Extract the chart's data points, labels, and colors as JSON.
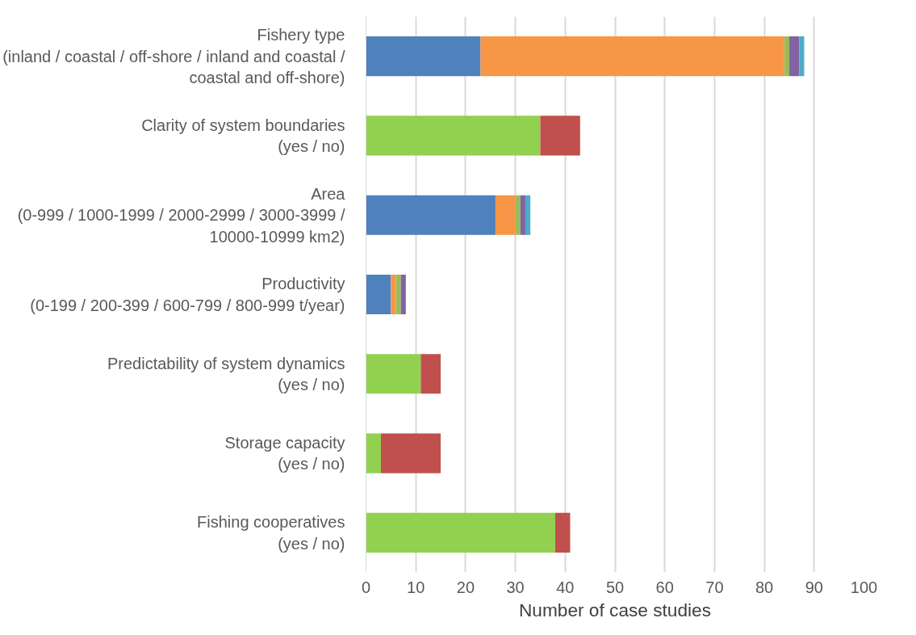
{
  "chart_data": {
    "type": "bar",
    "orientation": "horizontal",
    "stacked": true,
    "categories": [
      "Fishery type\n(inland / coastal / off-shore / inland and coastal /\ncoastal and off-shore)",
      "Clarity of system boundaries\n(yes / no)",
      "Area\n(0-999 / 1000-1999 / 2000-2999 / 3000-3999 /\n10000-10999 km2)",
      "Productivity\n(0-199 / 200-399 / 600-799 / 800-999 t/year)",
      "Predictability of system dynamics\n(yes / no)",
      "Storage capacity\n(yes / no)",
      "Fishing cooperatives\n(yes / no)"
    ],
    "series": [
      {
        "color": "#4f81bd",
        "values": [
          23,
          null,
          26,
          5,
          null,
          null,
          null
        ]
      },
      {
        "color": "#f79646",
        "values": [
          61,
          null,
          4,
          1,
          null,
          null,
          null
        ]
      },
      {
        "color": "#9bbb59",
        "values": [
          1,
          null,
          1,
          1,
          null,
          null,
          null
        ]
      },
      {
        "color": "#8064a2",
        "values": [
          2,
          null,
          1,
          1,
          null,
          null,
          null
        ]
      },
      {
        "color": "#4bacc6",
        "values": [
          1,
          null,
          1,
          null,
          null,
          null,
          null
        ]
      },
      {
        "color": "#92d050",
        "values": [
          null,
          35,
          null,
          null,
          11,
          3,
          38
        ]
      },
      {
        "color": "#c0504d",
        "values": [
          null,
          8,
          null,
          null,
          4,
          12,
          3
        ]
      }
    ],
    "xlabel": "Number of case studies",
    "xlim": [
      0,
      100
    ],
    "xticks": [
      0,
      10,
      20,
      30,
      40,
      50,
      60,
      70,
      80,
      90,
      100
    ],
    "grid": "x"
  }
}
